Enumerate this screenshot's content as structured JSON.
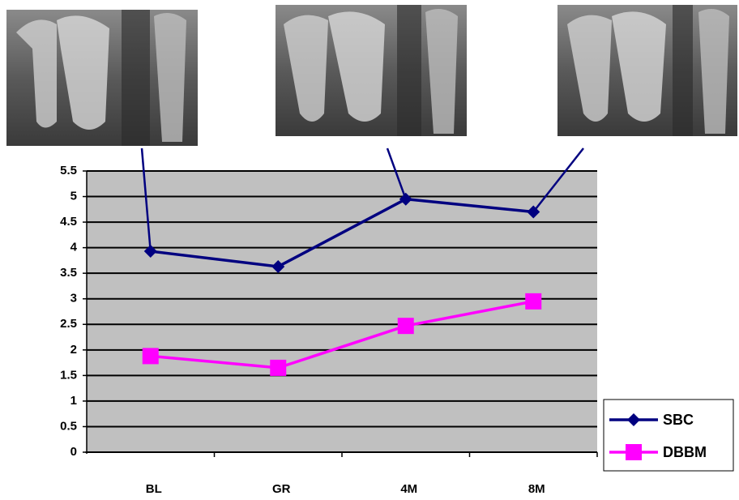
{
  "chart_data": {
    "type": "line",
    "categories": [
      "BL",
      "GR",
      "4M",
      "8M"
    ],
    "series": [
      {
        "name": "SBC",
        "color": "#000080",
        "marker": "diamond",
        "values": [
          3.93,
          3.63,
          4.95,
          4.7
        ]
      },
      {
        "name": "DBBM",
        "color": "#ff00ff",
        "marker": "square",
        "values": [
          1.88,
          1.65,
          2.47,
          2.95
        ]
      }
    ],
    "ylim": [
      0,
      5.5
    ],
    "yticks": [
      0,
      0.5,
      1,
      1.5,
      2,
      2.5,
      3,
      3.5,
      4,
      4.5,
      5,
      5.5
    ],
    "grid": true
  }
}
